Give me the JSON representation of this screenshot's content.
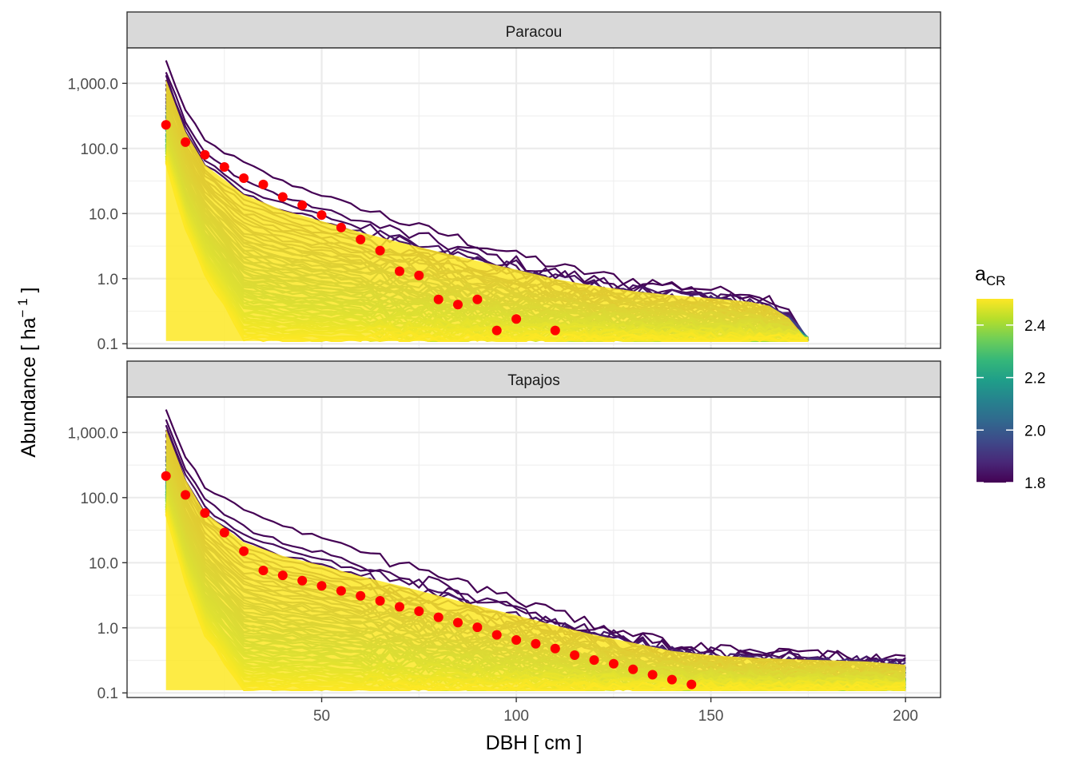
{
  "chart_data": {
    "type": "line",
    "x_axis": {
      "label": "DBH [ cm ]",
      "range": [
        0,
        209
      ],
      "ticks": [
        50,
        100,
        150,
        200
      ],
      "tick_labels": [
        "50",
        "100",
        "150",
        "200"
      ],
      "minor_ticks": [
        25,
        75,
        125,
        175
      ]
    },
    "y_axis": {
      "label": "Abundance [ ha⁻¹ ]",
      "label_main": "Abundance [ ha",
      "label_exp": "− 1",
      "label_close": " ]",
      "scale": "log10",
      "range": [
        0.085,
        3500
      ],
      "ticks": [
        0.1,
        1,
        10,
        100,
        1000
      ],
      "tick_labels": [
        "0.1",
        "1.0",
        "10.0",
        "100.0",
        "1,000.0"
      ],
      "minor_ticks": [
        0.316,
        3.16,
        31.6,
        316
      ]
    },
    "grid": true,
    "legend": {
      "title_main": "a",
      "title_sub": "CR",
      "position": "right",
      "type": "colorbar",
      "range": [
        1.8,
        2.5
      ],
      "ticks": [
        1.8,
        2.0,
        2.2,
        2.4
      ],
      "tick_labels": [
        "1.8",
        "2.0",
        "2.2",
        "2.4"
      ],
      "colors": [
        "#440154",
        "#482878",
        "#3e4989",
        "#31688e",
        "#26828e",
        "#1f9e89",
        "#35b779",
        "#6ece58",
        "#b5de2b",
        "#fde725"
      ]
    },
    "panels": [
      {
        "title": "Paracou",
        "observed": {
          "color": "#ff0000",
          "x": [
            10,
            15,
            20,
            25,
            30,
            35,
            40,
            45,
            50,
            55,
            60,
            65,
            70,
            75,
            80,
            85,
            90,
            95,
            100,
            110
          ],
          "y": [
            230,
            125,
            80,
            52,
            35,
            28,
            18,
            13.5,
            9.5,
            6.1,
            4.0,
            2.7,
            1.3,
            1.12,
            0.48,
            0.4,
            0.48,
            0.16,
            0.24,
            0.16
          ]
        },
        "simulation_envelope": {
          "x": [
            10,
            15,
            20,
            30,
            40,
            50,
            60,
            70,
            80,
            90,
            100,
            110,
            120,
            130,
            140,
            150,
            160,
            165,
            170,
            175
          ],
          "upper": [
            2200,
            380,
            130,
            60,
            31,
            19.5,
            12,
            7.8,
            5.2,
            3.5,
            2.4,
            1.6,
            1.2,
            0.95,
            0.8,
            0.7,
            0.6,
            0.5,
            0.3,
            0.11
          ],
          "lower": [
            60,
            6,
            1.2,
            0.12,
            0.11,
            0.11,
            0.11,
            0.11,
            0.11,
            0.11,
            0.11,
            0.11,
            0.11,
            0.11,
            0.11,
            0.11,
            0.11,
            0.11,
            0.11,
            0.11
          ]
        },
        "x_max": 175
      },
      {
        "title": "Tapajos",
        "observed": {
          "color": "#ff0000",
          "x": [
            10,
            15,
            20,
            25,
            30,
            35,
            40,
            45,
            50,
            55,
            60,
            65,
            70,
            75,
            80,
            85,
            90,
            95,
            100,
            105,
            110,
            115,
            120,
            125,
            130,
            135,
            140,
            145
          ],
          "y": [
            215,
            110,
            58,
            29,
            15,
            7.6,
            6.4,
            5.3,
            4.4,
            3.7,
            3.1,
            2.6,
            2.1,
            1.8,
            1.45,
            1.2,
            1.02,
            0.78,
            0.65,
            0.57,
            0.48,
            0.38,
            0.32,
            0.28,
            0.23,
            0.19,
            0.16,
            0.135
          ]
        },
        "simulation_envelope": {
          "x": [
            10,
            15,
            20,
            30,
            40,
            50,
            60,
            70,
            80,
            90,
            100,
            110,
            120,
            130,
            140,
            150,
            160,
            170,
            180,
            190,
            200
          ],
          "upper": [
            2200,
            420,
            150,
            65,
            36,
            24,
            15,
            10,
            6.5,
            4.2,
            2.8,
            1.8,
            1.2,
            0.85,
            0.6,
            0.5,
            0.45,
            0.42,
            0.4,
            0.38,
            0.33
          ],
          "lower": [
            55,
            5,
            0.8,
            0.11,
            0.11,
            0.11,
            0.11,
            0.11,
            0.11,
            0.11,
            0.11,
            0.11,
            0.11,
            0.11,
            0.11,
            0.11,
            0.11,
            0.11,
            0.11,
            0.11,
            0.11
          ]
        },
        "x_max": 200
      }
    ]
  }
}
